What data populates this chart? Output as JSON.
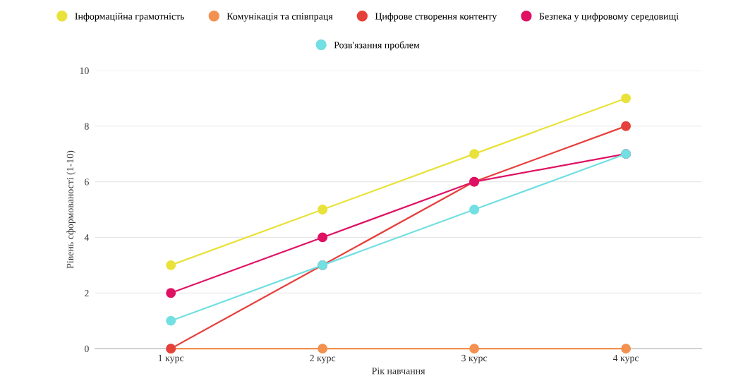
{
  "chart_data": {
    "type": "line",
    "xlabel": "Рік навчання",
    "ylabel": "Рівень сформованості (1-10)",
    "categories": [
      "1 курс",
      "2 курс",
      "3 курс",
      "4 курс"
    ],
    "series": [
      {
        "name": "Інформаційна грамотність",
        "color": "#e8e23a",
        "values": [
          3,
          5,
          7,
          9
        ]
      },
      {
        "name": "Комунікація та співпраця",
        "color": "#f39150",
        "values": [
          0,
          0,
          0,
          0
        ]
      },
      {
        "name": "Цифрове створення контенту",
        "color": "#e6403b",
        "values": [
          0,
          3,
          6,
          8
        ]
      },
      {
        "name": "Безпека у цифровому середовищі",
        "color": "#df1163",
        "values": [
          2,
          4,
          6,
          7
        ]
      },
      {
        "name": "Розв'язання проблем",
        "color": "#72dfe2",
        "values": [
          1,
          3,
          5,
          7
        ]
      }
    ],
    "ylim": [
      0,
      10
    ],
    "yticks": [
      0,
      2,
      4,
      6,
      8,
      10
    ],
    "grid": "y",
    "legend": "top",
    "marker": "circle",
    "line_style": "solid"
  }
}
